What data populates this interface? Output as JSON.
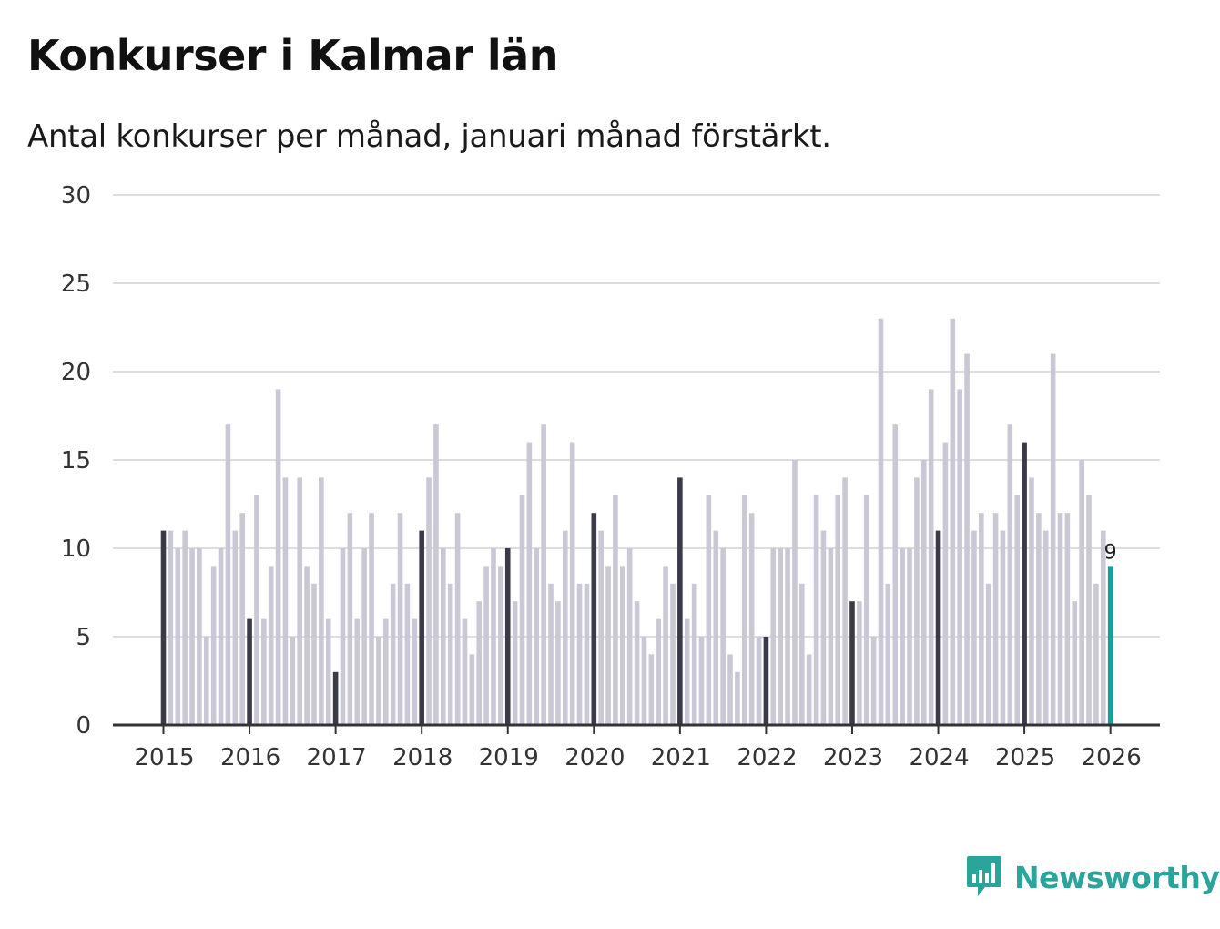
{
  "title": "Konkurser i Kalmar län",
  "subtitle": "Antal konkurser per månad, januari månad förstärkt.",
  "brand": {
    "name": "Newsworthy",
    "color": "#2ba59b",
    "icon": "bar-chart-speech-bubble-icon"
  },
  "colors": {
    "january": "#3b3a48",
    "other": "#c9c8d4",
    "latest": "#16a197",
    "grid": "#dddddd",
    "axis": "#333333"
  },
  "chart_data": {
    "type": "bar",
    "title": "Konkurser i Kalmar län",
    "xlabel": "",
    "ylabel": "",
    "ylim": [
      0,
      30
    ],
    "yticks": [
      0,
      5,
      10,
      15,
      20,
      25,
      30
    ],
    "grid": true,
    "start": "2015-01",
    "xtick_labels": [
      "2015",
      "2016",
      "2017",
      "2018",
      "2019",
      "2020",
      "2021",
      "2022",
      "2023",
      "2024",
      "2025",
      "2026"
    ],
    "highlight": "January bars darker; latest month highlighted and labelled",
    "latest_label": "9",
    "values": [
      11,
      11,
      10,
      11,
      10,
      10,
      5,
      9,
      10,
      17,
      11,
      12,
      6,
      13,
      6,
      9,
      19,
      14,
      5,
      14,
      9,
      8,
      14,
      6,
      3,
      10,
      12,
      6,
      10,
      12,
      5,
      6,
      8,
      12,
      8,
      6,
      11,
      14,
      17,
      10,
      8,
      12,
      6,
      4,
      7,
      9,
      10,
      9,
      10,
      7,
      13,
      16,
      10,
      17,
      8,
      7,
      11,
      16,
      8,
      8,
      12,
      11,
      9,
      13,
      9,
      10,
      7,
      5,
      4,
      6,
      9,
      8,
      14,
      6,
      8,
      5,
      13,
      11,
      10,
      4,
      3,
      13,
      12,
      5,
      5,
      10,
      10,
      10,
      15,
      8,
      4,
      13,
      11,
      10,
      13,
      14,
      7,
      7,
      13,
      5,
      23,
      8,
      17,
      10,
      10,
      14,
      15,
      19,
      11,
      16,
      23,
      19,
      21,
      11,
      12,
      8,
      12,
      11,
      17,
      13,
      16,
      14,
      12,
      11,
      21,
      12,
      12,
      7,
      15,
      13,
      8,
      11,
      9
    ]
  }
}
